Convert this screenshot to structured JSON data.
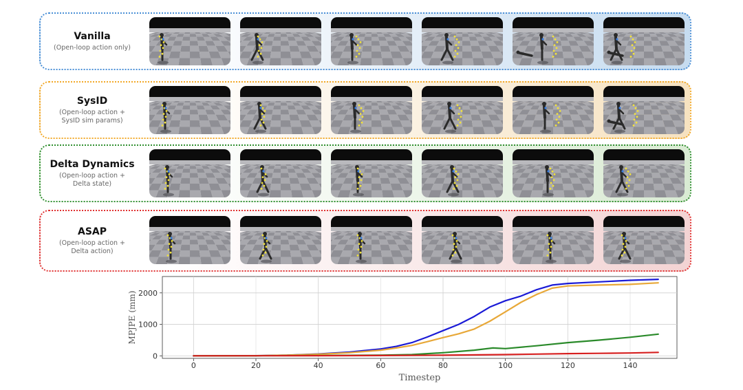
{
  "rows": [
    {
      "name": "Vanilla",
      "desc": [
        "(Open-loop action only)"
      ],
      "border": "#4a8fd6",
      "tint": "#cfe0f2"
    },
    {
      "name": "SysID",
      "desc": [
        "(Open-loop action +",
        "SysID sim params)"
      ],
      "border": "#f2a826",
      "tint": "#fbe8c4"
    },
    {
      "name": "Delta Dynamics",
      "desc": [
        "(Open-loop action +",
        "Delta state)"
      ],
      "border": "#2f8f2f",
      "tint": "#d5ead2"
    },
    {
      "name": "ASAP",
      "desc": [
        "(Open-loop action +",
        "Delta action)"
      ],
      "border": "#e03030",
      "tint": "#f6d0d0"
    }
  ],
  "chart_data": {
    "type": "line",
    "xlabel": "Timestep",
    "ylabel": "MPJPE (mm)",
    "xlim": [
      -10,
      155
    ],
    "ylim": [
      -80,
      2520
    ],
    "xticks": [
      0,
      20,
      40,
      60,
      80,
      100,
      120,
      140
    ],
    "yticks": [
      0,
      1000,
      2000
    ],
    "grid": true,
    "series": [
      {
        "color": "#1a1ad6",
        "x": [
          0,
          20,
          30,
          40,
          50,
          60,
          65,
          70,
          75,
          80,
          85,
          90,
          95,
          100,
          105,
          110,
          115,
          120,
          130,
          140,
          149
        ],
        "y": [
          0,
          5,
          20,
          60,
          120,
          220,
          300,
          420,
          600,
          800,
          1000,
          1250,
          1550,
          1750,
          1900,
          2100,
          2250,
          2300,
          2350,
          2400,
          2430
        ]
      },
      {
        "color": "#e8a838",
        "x": [
          0,
          20,
          30,
          40,
          50,
          60,
          65,
          70,
          75,
          80,
          85,
          90,
          95,
          100,
          105,
          110,
          115,
          120,
          130,
          140,
          149
        ],
        "y": [
          0,
          5,
          20,
          50,
          100,
          180,
          250,
          330,
          450,
          580,
          700,
          850,
          1100,
          1400,
          1700,
          1950,
          2150,
          2220,
          2250,
          2270,
          2320
        ]
      },
      {
        "color": "#2a8a2a",
        "x": [
          0,
          20,
          40,
          60,
          70,
          80,
          90,
          96,
          100,
          110,
          120,
          130,
          140,
          149
        ],
        "y": [
          0,
          5,
          10,
          20,
          40,
          100,
          180,
          250,
          230,
          320,
          420,
          500,
          590,
          690
        ]
      },
      {
        "color": "#d62020",
        "x": [
          0,
          20,
          40,
          60,
          80,
          100,
          110,
          120,
          130,
          140,
          149
        ],
        "y": [
          0,
          3,
          5,
          10,
          20,
          40,
          55,
          70,
          80,
          90,
          110
        ]
      }
    ]
  }
}
